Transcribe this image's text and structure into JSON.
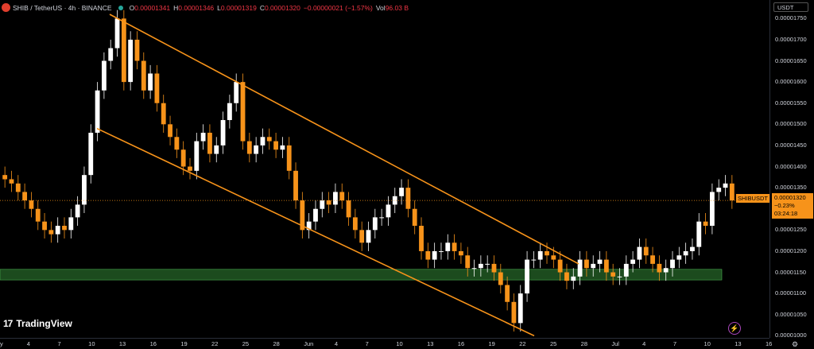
{
  "legend": {
    "symbol": "SHIB / TetherUS · 4h · BINANCE",
    "o_label": "O",
    "o_value": "0.00001341",
    "h_label": "H",
    "h_value": "0.00001346",
    "l_label": "L",
    "l_value": "0.00001319",
    "c_label": "C",
    "c_value": "0.00001320",
    "change": "−0.00000021 (−1.57%)",
    "vol_label": "Vol",
    "vol_value": "96.03 B"
  },
  "price_scale": {
    "currency": "USDT",
    "ticks": [
      "0.00001750",
      "0.00001700",
      "0.00001650",
      "0.00001600",
      "0.00001550",
      "0.00001500",
      "0.00001450",
      "0.00001400",
      "0.00001350",
      "0.00001300",
      "0.00001250",
      "0.00001200",
      "0.00001150",
      "0.00001100",
      "0.00001050",
      "0.00001000"
    ],
    "last_price": "0.00001320",
    "last_change": "−0.23%",
    "countdown": "03:24:18",
    "symbol_badge": "SHIBUSDT"
  },
  "time_scale": {
    "ticks": [
      "y",
      "4",
      "7",
      "10",
      "13",
      "16",
      "19",
      "22",
      "25",
      "28",
      "Jun",
      "4",
      "7",
      "10",
      "13",
      "16",
      "19",
      "22",
      "25",
      "28",
      "Jul",
      "4",
      "7",
      "10",
      "13",
      "16"
    ]
  },
  "branding": {
    "name": "TradingView",
    "mark": "17"
  },
  "colors": {
    "up": "#ffffff",
    "down": "#f7931a",
    "channel": "#f7931a",
    "support_zone": "#2e7d32",
    "last_price_line": "#f7931a"
  },
  "chart_data": {
    "type": "candlestick",
    "interval": "4h",
    "y_range": [
      9.95e-06,
      1.76e-05
    ],
    "last_price": 1.32e-05,
    "closes": [
      1.37e-05,
      1.36e-05,
      1.34e-05,
      1.32e-05,
      1.3e-05,
      1.27e-05,
      1.25e-05,
      1.24e-05,
      1.26e-05,
      1.25e-05,
      1.28e-05,
      1.31e-05,
      1.38e-05,
      1.48e-05,
      1.58e-05,
      1.65e-05,
      1.68e-05,
      1.75e-05,
      1.6e-05,
      1.7e-05,
      1.65e-05,
      1.58e-05,
      1.62e-05,
      1.55e-05,
      1.5e-05,
      1.47e-05,
      1.44e-05,
      1.4e-05,
      1.39e-05,
      1.46e-05,
      1.48e-05,
      1.43e-05,
      1.45e-05,
      1.51e-05,
      1.55e-05,
      1.6e-05,
      1.46e-05,
      1.43e-05,
      1.45e-05,
      1.47e-05,
      1.46e-05,
      1.44e-05,
      1.45e-05,
      1.39e-05,
      1.32e-05,
      1.25e-05,
      1.27e-05,
      1.3e-05,
      1.32e-05,
      1.31e-05,
      1.34e-05,
      1.32e-05,
      1.28e-05,
      1.25e-05,
      1.22e-05,
      1.25e-05,
      1.28e-05,
      1.28e-05,
      1.31e-05,
      1.33e-05,
      1.35e-05,
      1.3e-05,
      1.26e-05,
      1.2e-05,
      1.18e-05,
      1.2e-05,
      1.2e-05,
      1.22e-05,
      1.2e-05,
      1.19e-05,
      1.16e-05,
      1.16e-05,
      1.17e-05,
      1.17e-05,
      1.15e-05,
      1.12e-05,
      1.08e-05,
      1.03e-05,
      1.1e-05,
      1.18e-05,
      1.18e-05,
      1.2e-05,
      1.19e-05,
      1.18e-05,
      1.15e-05,
      1.13e-05,
      1.14e-05,
      1.18e-05,
      1.16e-05,
      1.17e-05,
      1.18e-05,
      1.15e-05,
      1.14e-05,
      1.14e-05,
      1.17e-05,
      1.18e-05,
      1.21e-05,
      1.19e-05,
      1.17e-05,
      1.15e-05,
      1.16e-05,
      1.18e-05,
      1.19e-05,
      1.2e-05,
      1.21e-05,
      1.27e-05,
      1.26e-05,
      1.34e-05,
      1.35e-05,
      1.36e-05,
      1.32e-05
    ],
    "channel_upper": [
      [
        1.76e-05,
        0
      ],
      [
        1.17e-05,
        1
      ]
    ],
    "channel_lower": [
      [
        1.49e-05,
        0
      ],
      [
        1e-05,
        1
      ]
    ],
    "support_zone": [
      1.132e-05,
      1.157e-05
    ]
  }
}
